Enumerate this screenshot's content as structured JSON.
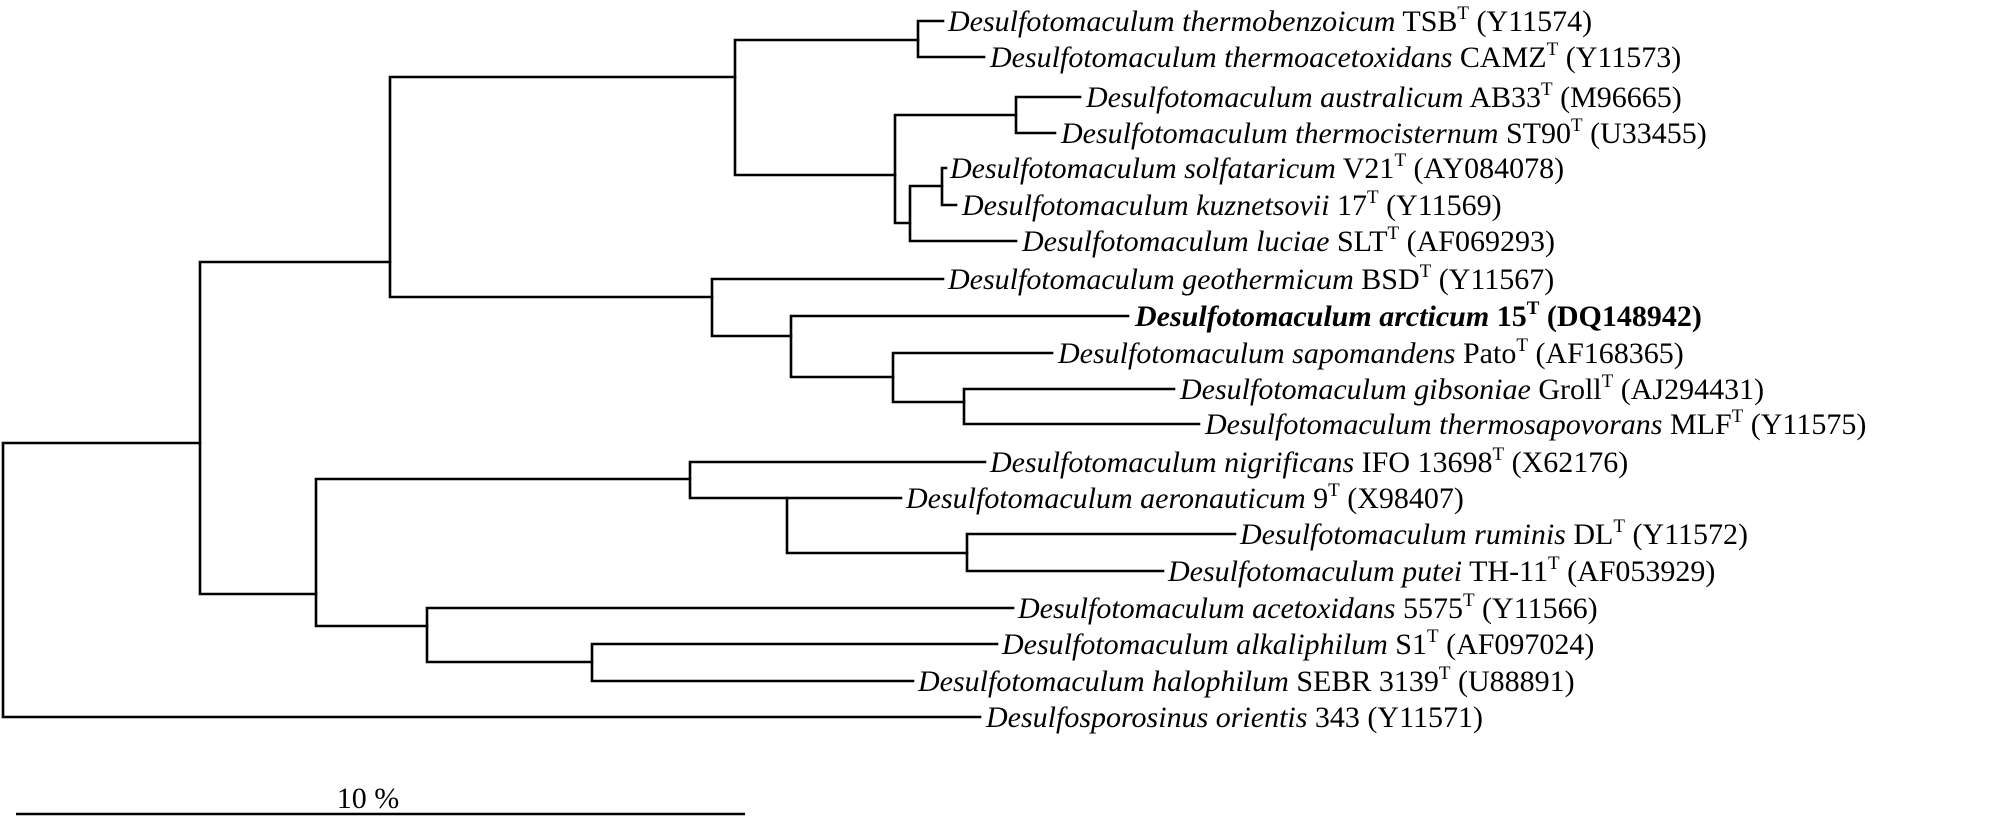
{
  "taxa": [
    {
      "species": "Desulfotomaculum thermobenzoicum",
      "strain": "TSB",
      "type_strain": true,
      "accession": "(Y11574)"
    },
    {
      "species": "Desulfotomaculum thermoacetoxidans",
      "strain": "CAMZ",
      "type_strain": true,
      "accession": "(Y11573)"
    },
    {
      "species": "Desulfotomaculum australicum",
      "strain": "AB33",
      "type_strain": true,
      "accession": "(M96665)"
    },
    {
      "species": "Desulfotomaculum thermocisternum",
      "strain": "ST90",
      "type_strain": true,
      "accession": "(U33455)"
    },
    {
      "species": "Desulfotomaculum solfataricum",
      "strain": "V21",
      "type_strain": true,
      "accession": "(AY084078)"
    },
    {
      "species": "Desulfotomaculum kuznetsovii",
      "strain": "17",
      "type_strain": true,
      "accession": "(Y11569)"
    },
    {
      "species": "Desulfotomaculum luciae",
      "strain": "SLT",
      "type_strain": true,
      "accession": "(AF069293)"
    },
    {
      "species": "Desulfotomaculum geothermicum",
      "strain": "BSD",
      "type_strain": true,
      "accession": "(Y11567)"
    },
    {
      "species": "Desulfotomaculum arcticum",
      "strain": "15",
      "type_strain": true,
      "accession": "(DQ148942)",
      "highlight": true
    },
    {
      "species": "Desulfotomaculum sapomandens",
      "strain": "Pato",
      "type_strain": true,
      "accession": "(AF168365)"
    },
    {
      "species": "Desulfotomaculum gibsoniae",
      "strain": "Groll",
      "type_strain": true,
      "accession": "(AJ294431)"
    },
    {
      "species": "Desulfotomaculum thermosapovorans",
      "strain": "MLF",
      "type_strain": true,
      "accession": "(Y11575)"
    },
    {
      "species": "Desulfotomaculum nigrificans",
      "strain": "IFO 13698",
      "type_strain": true,
      "accession": "(X62176)"
    },
    {
      "species": "Desulfotomaculum aeronauticum",
      "strain": "9",
      "type_strain": true,
      "accession": "(X98407)"
    },
    {
      "species": "Desulfotomaculum ruminis",
      "strain": "DL",
      "type_strain": true,
      "accession": "(Y11572)"
    },
    {
      "species": "Desulfotomaculum putei",
      "strain": "TH-11",
      "type_strain": true,
      "accession": "(AF053929)"
    },
    {
      "species": "Desulfotomaculum acetoxidans",
      "strain": "5575",
      "type_strain": true,
      "accession": "(Y11566)"
    },
    {
      "species": "Desulfotomaculum alkaliphilum",
      "strain": "S1",
      "type_strain": true,
      "accession": "(AF097024)"
    },
    {
      "species": "Desulfotomaculum halophilum",
      "strain": "SEBR 3139",
      "type_strain": true,
      "accession": "(U88891)"
    },
    {
      "species": "Desulfosporosinus orientis",
      "strain": "343",
      "type_strain": false,
      "accession": "(Y11571)"
    }
  ],
  "type_mark": "T",
  "scale_bar": {
    "label": "10 %",
    "value_percent": 10
  }
}
